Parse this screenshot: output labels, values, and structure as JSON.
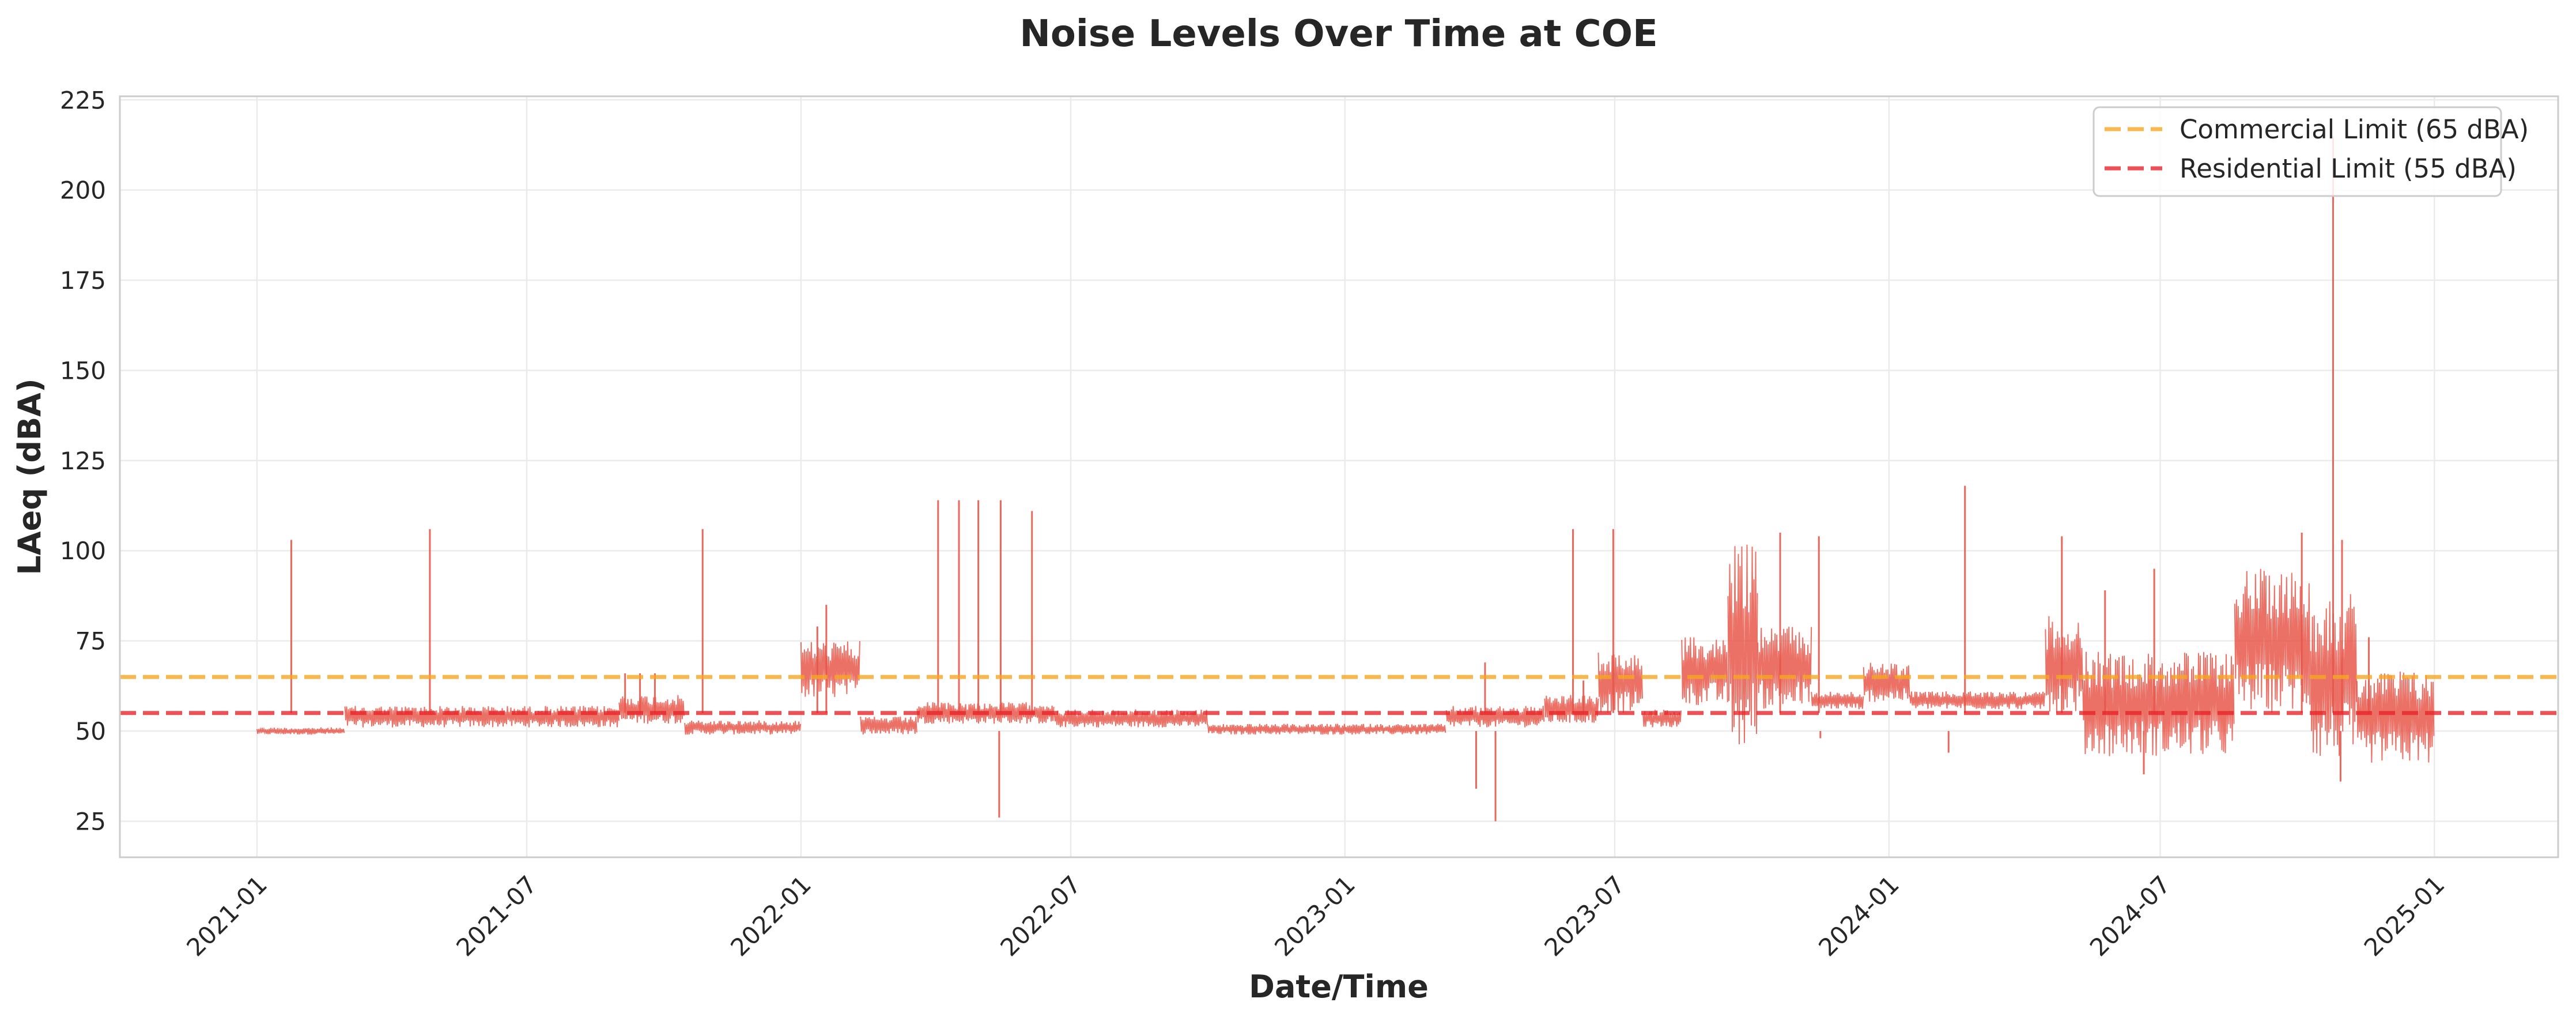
{
  "chart_data": {
    "type": "line",
    "title": "Noise Levels Over Time at COE",
    "xlabel": "Date/Time",
    "ylabel": "LAeq (dBA)",
    "xlim": [
      "2020-10-01",
      "2025-03-25"
    ],
    "ylim": [
      15,
      226
    ],
    "yticks": [
      25,
      50,
      75,
      100,
      125,
      150,
      175,
      200,
      225
    ],
    "xticks": [
      "2021-01",
      "2021-07",
      "2022-01",
      "2022-07",
      "2023-01",
      "2023-07",
      "2024-01",
      "2024-07",
      "2025-01"
    ],
    "grid": true,
    "legend_position": "top-right",
    "colors": {
      "series": "#e8574a",
      "commercial": "#f5a623",
      "residential": "#e8262b",
      "frame": "#cccccc"
    },
    "reference_lines": [
      {
        "label": "Commercial Limit (65 dBA)",
        "y": 65,
        "color": "#f5a623",
        "style": "dashed"
      },
      {
        "label": "Residential Limit (55 dBA)",
        "y": 55,
        "color": "#e8262b",
        "style": "dashed"
      }
    ],
    "series": [
      {
        "segments": [
          {
            "start": "2021-01-01",
            "end": "2021-03-01",
            "lo": 49,
            "hi": 51
          },
          {
            "start": "2021-03-01",
            "end": "2021-09-01",
            "lo": 51,
            "hi": 57
          },
          {
            "start": "2021-09-01",
            "end": "2021-10-15",
            "lo": 52,
            "hi": 60
          },
          {
            "start": "2021-10-15",
            "end": "2022-01-01",
            "lo": 49,
            "hi": 53
          },
          {
            "start": "2022-01-01",
            "end": "2022-02-10",
            "lo": 59,
            "hi": 75
          },
          {
            "start": "2022-02-10",
            "end": "2022-03-20",
            "lo": 49,
            "hi": 54
          },
          {
            "start": "2022-03-20",
            "end": "2022-06-20",
            "lo": 52,
            "hi": 58
          },
          {
            "start": "2022-06-20",
            "end": "2022-10-01",
            "lo": 51,
            "hi": 56
          },
          {
            "start": "2022-10-01",
            "end": "2023-03-10",
            "lo": 49,
            "hi": 52
          },
          {
            "start": "2023-03-10",
            "end": "2023-05-15",
            "lo": 51,
            "hi": 57
          },
          {
            "start": "2023-05-15",
            "end": "2023-06-20",
            "lo": 52,
            "hi": 60
          },
          {
            "start": "2023-06-20",
            "end": "2023-07-20",
            "lo": 55,
            "hi": 72
          },
          {
            "start": "2023-07-20",
            "end": "2023-08-15",
            "lo": 51,
            "hi": 56
          },
          {
            "start": "2023-08-15",
            "end": "2023-09-15",
            "lo": 57,
            "hi": 76
          },
          {
            "start": "2023-09-15",
            "end": "2023-10-05",
            "lo": 44,
            "hi": 102
          },
          {
            "start": "2023-10-05",
            "end": "2023-11-10",
            "lo": 56,
            "hi": 79
          },
          {
            "start": "2023-11-10",
            "end": "2023-12-15",
            "lo": 56,
            "hi": 61
          },
          {
            "start": "2023-12-15",
            "end": "2024-01-15",
            "lo": 58,
            "hi": 69
          },
          {
            "start": "2024-01-15",
            "end": "2024-04-15",
            "lo": 56,
            "hi": 61
          },
          {
            "start": "2024-04-15",
            "end": "2024-05-10",
            "lo": 55,
            "hi": 82
          },
          {
            "start": "2024-05-10",
            "end": "2024-08-20",
            "lo": 43,
            "hi": 72
          },
          {
            "start": "2024-08-20",
            "end": "2024-10-10",
            "lo": 55,
            "hi": 95
          },
          {
            "start": "2024-10-10",
            "end": "2024-11-10",
            "lo": 42,
            "hi": 88
          },
          {
            "start": "2024-11-10",
            "end": "2025-01-01",
            "lo": 41,
            "hi": 67
          }
        ],
        "spikes": [
          {
            "date": "2021-01-24",
            "value": 103
          },
          {
            "date": "2021-04-27",
            "value": 106
          },
          {
            "date": "2021-10-27",
            "value": 106
          },
          {
            "date": "2021-09-05",
            "value": 66
          },
          {
            "date": "2021-09-15",
            "value": 66
          },
          {
            "date": "2021-09-25",
            "value": 66
          },
          {
            "date": "2022-01-12",
            "value": 79
          },
          {
            "date": "2022-01-18",
            "value": 85
          },
          {
            "date": "2022-04-03",
            "value": 114
          },
          {
            "date": "2022-04-17",
            "value": 114
          },
          {
            "date": "2022-04-30",
            "value": 114
          },
          {
            "date": "2022-05-14",
            "value": 26
          },
          {
            "date": "2022-05-15",
            "value": 114
          },
          {
            "date": "2022-06-05",
            "value": 111
          },
          {
            "date": "2023-03-30",
            "value": 34
          },
          {
            "date": "2023-04-05",
            "value": 69
          },
          {
            "date": "2023-04-12",
            "value": 25
          },
          {
            "date": "2023-06-03",
            "value": 106
          },
          {
            "date": "2023-06-10",
            "value": 64
          },
          {
            "date": "2023-06-30",
            "value": 106
          },
          {
            "date": "2023-10-20",
            "value": 105
          },
          {
            "date": "2023-11-15",
            "value": 104
          },
          {
            "date": "2023-11-16",
            "value": 48
          },
          {
            "date": "2024-02-10",
            "value": 44
          },
          {
            "date": "2024-02-21",
            "value": 118
          },
          {
            "date": "2024-04-26",
            "value": 104
          },
          {
            "date": "2024-05-25",
            "value": 89
          },
          {
            "date": "2024-06-27",
            "value": 95
          },
          {
            "date": "2024-06-20",
            "value": 38
          },
          {
            "date": "2024-10-04",
            "value": 105
          },
          {
            "date": "2024-10-25",
            "value": 215
          },
          {
            "date": "2024-10-31",
            "value": 103
          },
          {
            "date": "2024-10-30",
            "value": 36
          },
          {
            "date": "2024-11-18",
            "value": 76
          }
        ]
      }
    ]
  }
}
